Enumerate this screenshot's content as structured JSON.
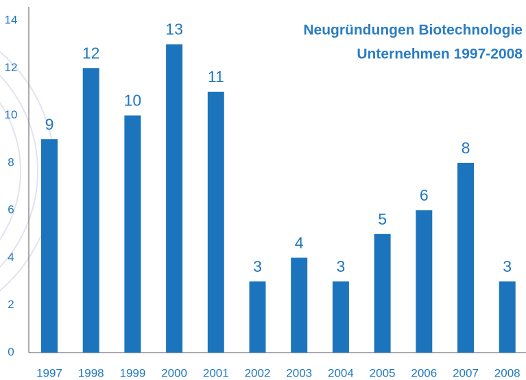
{
  "chart_data": {
    "type": "bar",
    "title_lines": [
      "Neugründungen Biotechnologie",
      "Unternehmen  1997-2008"
    ],
    "categories": [
      "1997",
      "1998",
      "1999",
      "2000",
      "2001",
      "2002",
      "2003",
      "2004",
      "2005",
      "2006",
      "2007",
      "2008"
    ],
    "values": [
      9,
      12,
      10,
      13,
      11,
      3,
      4,
      3,
      5,
      6,
      8,
      3
    ],
    "color": "#1c75bc",
    "ylim": [
      0,
      14
    ],
    "yticks": [
      0,
      2,
      4,
      6,
      8,
      10,
      12,
      14
    ],
    "grid": false
  }
}
